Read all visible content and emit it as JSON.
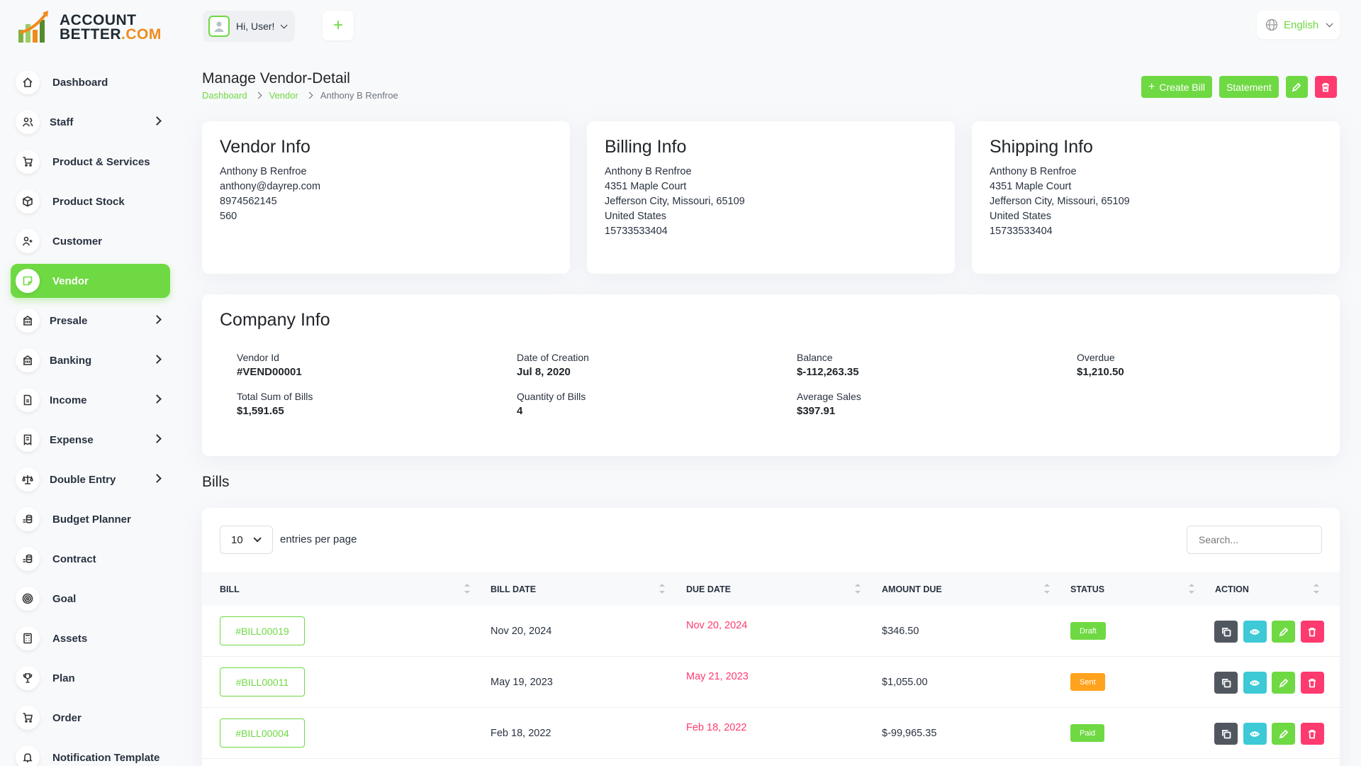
{
  "brand": {
    "line1": "ACCOUNT",
    "line2a": "BETTER",
    "line2b": ".COM"
  },
  "sidebar": {
    "items": [
      {
        "label": "Dashboard",
        "icon": "home-icon",
        "has_chevron": false,
        "active": false
      },
      {
        "label": "Staff",
        "icon": "users-icon",
        "has_chevron": true,
        "active": false
      },
      {
        "label": "Product & Services",
        "icon": "cart-icon",
        "has_chevron": false,
        "active": false
      },
      {
        "label": "Product Stock",
        "icon": "box-icon",
        "has_chevron": false,
        "active": false
      },
      {
        "label": "Customer",
        "icon": "user-plus-icon",
        "has_chevron": false,
        "active": false
      },
      {
        "label": "Vendor",
        "icon": "note-icon",
        "has_chevron": false,
        "active": true
      },
      {
        "label": "Presale",
        "icon": "building-icon",
        "has_chevron": true,
        "active": false
      },
      {
        "label": "Banking",
        "icon": "bank-icon",
        "has_chevron": true,
        "active": false
      },
      {
        "label": "Income",
        "icon": "file-icon",
        "has_chevron": true,
        "active": false
      },
      {
        "label": "Expense",
        "icon": "receipt-icon",
        "has_chevron": true,
        "active": false
      },
      {
        "label": "Double Entry",
        "icon": "scale-icon",
        "has_chevron": true,
        "active": false
      },
      {
        "label": "Budget Planner",
        "icon": "coins-icon",
        "has_chevron": false,
        "active": false
      },
      {
        "label": "Contract",
        "icon": "coins-icon",
        "has_chevron": false,
        "active": false
      },
      {
        "label": "Goal",
        "icon": "target-icon",
        "has_chevron": false,
        "active": false
      },
      {
        "label": "Assets",
        "icon": "calculator-icon",
        "has_chevron": false,
        "active": false
      },
      {
        "label": "Plan",
        "icon": "trophy-icon",
        "has_chevron": false,
        "active": false
      },
      {
        "label": "Order",
        "icon": "cart-icon",
        "has_chevron": false,
        "active": false
      },
      {
        "label": "Notification Template",
        "icon": "bell-icon",
        "has_chevron": false,
        "active": false
      }
    ]
  },
  "header": {
    "greeting": "Hi, User!",
    "language": "English"
  },
  "page": {
    "title": "Manage Vendor-Detail",
    "breadcrumb": [
      "Dashboard",
      "Vendor",
      "Anthony B Renfroe"
    ],
    "actions": {
      "create_bill": "Create Bill",
      "statement": "Statement"
    }
  },
  "vendor_info": {
    "title": "Vendor Info",
    "lines": [
      "Anthony B Renfroe",
      "anthony@dayrep.com",
      "8974562145",
      "560"
    ]
  },
  "billing_info": {
    "title": "Billing Info",
    "lines": [
      "Anthony B Renfroe",
      "4351 Maple Court",
      "Jefferson City, Missouri, 65109",
      "United States",
      "15733533404"
    ]
  },
  "shipping_info": {
    "title": "Shipping Info",
    "lines": [
      "Anthony B Renfroe",
      "4351 Maple Court",
      "Jefferson City, Missouri, 65109",
      "United States",
      "15733533404"
    ]
  },
  "company_info": {
    "title": "Company Info",
    "fields": [
      {
        "label": "Vendor Id",
        "value": "#VEND00001"
      },
      {
        "label": "Date of Creation",
        "value": "Jul 8, 2020"
      },
      {
        "label": "Balance",
        "value": "$-112,263.35"
      },
      {
        "label": "Overdue",
        "value": "$1,210.50"
      },
      {
        "label": "Total Sum of Bills",
        "value": "$1,591.65"
      },
      {
        "label": "Quantity of Bills",
        "value": "4"
      },
      {
        "label": "Average Sales",
        "value": "$397.91"
      }
    ]
  },
  "bills": {
    "title": "Bills",
    "per_page": "10",
    "per_page_label": "entries per page",
    "search_placeholder": "Search...",
    "columns": [
      "BILL",
      "BILL DATE",
      "DUE DATE",
      "AMOUNT DUE",
      "STATUS",
      "ACTION"
    ],
    "rows": [
      {
        "bill": "#BILL00019",
        "bill_date": "Nov 20, 2024",
        "due_date": "Nov 20, 2024",
        "amount_due": "$346.50",
        "status": "Draft",
        "status_color": "#6fd943"
      },
      {
        "bill": "#BILL00011",
        "bill_date": "May 19, 2023",
        "due_date": "May 21, 2023",
        "amount_due": "$1,055.00",
        "status": "Sent",
        "status_color": "#ffa21d"
      },
      {
        "bill": "#BILL00004",
        "bill_date": "Feb 18, 2022",
        "due_date": "Feb 18, 2022",
        "amount_due": "$-99,965.35",
        "status": "Paid",
        "status_color": "#6fd943"
      }
    ]
  },
  "colors": {
    "accent": "#6fd943",
    "danger": "#ff3a6e",
    "info": "#3ec9d6",
    "dark": "#51575f",
    "warning": "#ffa21d"
  }
}
